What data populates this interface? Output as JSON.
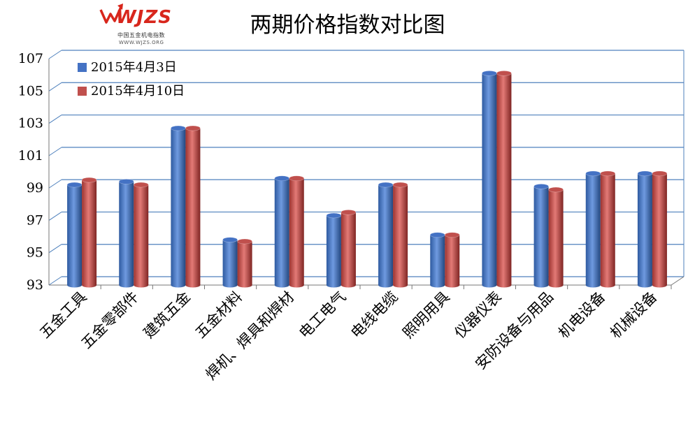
{
  "logo": {
    "text": "WJZS",
    "cn": "中国五金机电指数",
    "url": "WWW.WJZS.ORG"
  },
  "colors": {
    "series1": "#4472c4",
    "series2": "#c0504d",
    "grid": "#4f81bd",
    "brand": "#d8261c"
  },
  "chart_data": {
    "type": "bar",
    "title": "两期价格指数对比图",
    "categories": [
      "五金工具",
      "五金零部件",
      "建筑五金",
      "五金材料",
      "焊机、焊具和焊材",
      "电工电气",
      "电线电缆",
      "照明用具",
      "仪器仪表",
      "安防设备与用品",
      "机电设备",
      "机械设备"
    ],
    "series": [
      {
        "name": "2015年4月3日",
        "values": [
          99.2,
          99.4,
          102.7,
          95.8,
          99.6,
          97.3,
          99.2,
          96.1,
          106.1,
          99.1,
          99.9,
          99.9
        ]
      },
      {
        "name": "2015年4月10日",
        "values": [
          99.5,
          99.2,
          102.7,
          95.7,
          99.6,
          97.5,
          99.2,
          96.1,
          106.1,
          98.9,
          99.9,
          99.9
        ]
      }
    ],
    "yticks": [
      "93",
      "95",
      "97",
      "99",
      "101",
      "103",
      "105",
      "107"
    ],
    "ylim": [
      93,
      107
    ],
    "grid": true,
    "legend": "top-left"
  }
}
